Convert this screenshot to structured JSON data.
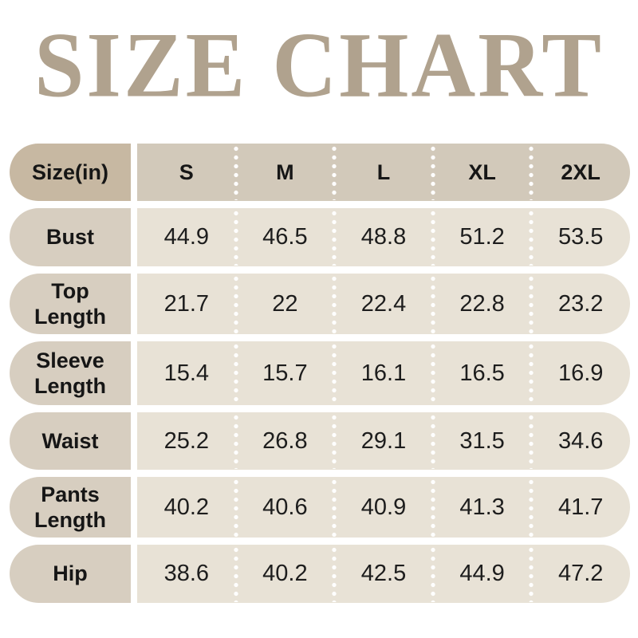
{
  "title": "SIZE CHART",
  "colors": {
    "title": "#b0a28e",
    "header_label_bg": "#c7b8a2",
    "header_strip_bg": "#d2c9ba",
    "row_label_bg": "#d7cec0",
    "row_strip_bg": "#e8e2d6",
    "text": "#161616",
    "background": "#ffffff",
    "dotted_separator": "#ffffff"
  },
  "table": {
    "header": {
      "label": "Size(in)",
      "sizes": [
        "S",
        "M",
        "L",
        "XL",
        "2XL"
      ]
    },
    "rows": [
      {
        "label": "Bust",
        "values": [
          "44.9",
          "46.5",
          "48.8",
          "51.2",
          "53.5"
        ]
      },
      {
        "label": "Top\nLength",
        "values": [
          "21.7",
          "22",
          "22.4",
          "22.8",
          "23.2"
        ]
      },
      {
        "label": "Sleeve\nLength",
        "values": [
          "15.4",
          "15.7",
          "16.1",
          "16.5",
          "16.9"
        ]
      },
      {
        "label": "Waist",
        "values": [
          "25.2",
          "26.8",
          "29.1",
          "31.5",
          "34.6"
        ]
      },
      {
        "label": "Pants\nLength",
        "values": [
          "40.2",
          "40.6",
          "40.9",
          "41.3",
          "41.7"
        ]
      },
      {
        "label": "Hip",
        "values": [
          "38.6",
          "40.2",
          "42.5",
          "44.9",
          "47.2"
        ]
      }
    ]
  },
  "chart_data": {
    "type": "table",
    "title": "SIZE CHART",
    "columns": [
      "Size(in)",
      "S",
      "M",
      "L",
      "XL",
      "2XL"
    ],
    "rows": [
      [
        "Bust",
        44.9,
        46.5,
        48.8,
        51.2,
        53.5
      ],
      [
        "Top Length",
        21.7,
        22,
        22.4,
        22.8,
        23.2
      ],
      [
        "Sleeve Length",
        15.4,
        15.7,
        16.1,
        16.5,
        16.9
      ],
      [
        "Waist",
        25.2,
        26.8,
        29.1,
        31.5,
        34.6
      ],
      [
        "Pants Length",
        40.2,
        40.6,
        40.9,
        41.3,
        41.7
      ],
      [
        "Hip",
        38.6,
        40.2,
        42.5,
        44.9,
        47.2
      ]
    ]
  }
}
